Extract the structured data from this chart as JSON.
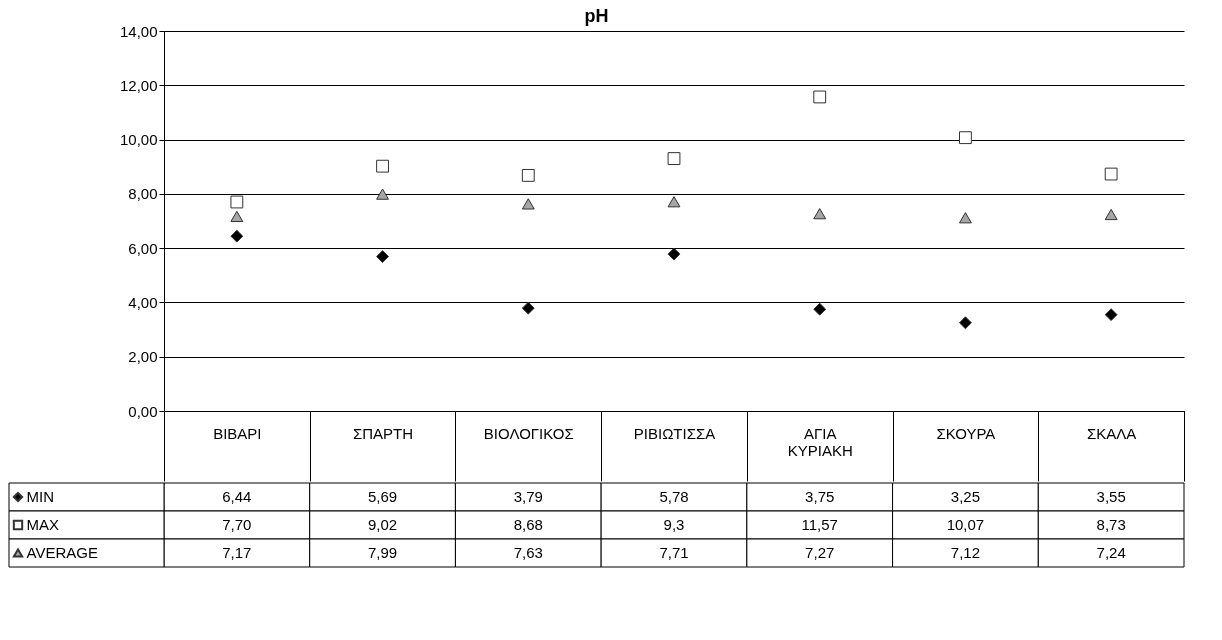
{
  "chart_data": {
    "type": "scatter",
    "title": "pH",
    "categories": [
      "ΒΙΒΑΡΙ",
      "ΣΠΑΡΤΗ",
      "ΒΙΟΛΟΓΙΚΟΣ",
      "ΡΙΒΙΩΤΙΣΣΑ",
      "ΑΓΙΑ ΚΥΡΙΑΚΗ",
      "ΣΚΟΥΡΑ",
      "ΣΚΑΛΑ"
    ],
    "series": [
      {
        "name": "MIN",
        "color": "#000000",
        "marker": "diamond",
        "values": [
          6.44,
          5.69,
          3.79,
          5.78,
          3.75,
          3.25,
          3.55
        ],
        "value_labels": [
          "6,44",
          "5,69",
          "3,79",
          "5,78",
          "3,75",
          "3,25",
          "3,55"
        ]
      },
      {
        "name": "MAX",
        "color": "#ffffff",
        "marker": "square",
        "values": [
          7.7,
          9.02,
          8.68,
          9.3,
          11.57,
          10.07,
          8.73
        ],
        "value_labels": [
          "7,70",
          "9,02",
          "8,68",
          "9,3",
          "11,57",
          "10,07",
          "8,73"
        ]
      },
      {
        "name": "AVERAGE",
        "color": "#a6a6a6",
        "marker": "triangle",
        "values": [
          7.17,
          7.99,
          7.63,
          7.71,
          7.27,
          7.12,
          7.24
        ],
        "value_labels": [
          "7,17",
          "7,99",
          "7,63",
          "7,71",
          "7,27",
          "7,12",
          "7,24"
        ]
      }
    ],
    "ylim": [
      0,
      14
    ],
    "yticks": [
      {
        "value": 0,
        "label": "0,00"
      },
      {
        "value": 2,
        "label": "2,00"
      },
      {
        "value": 4,
        "label": "4,00"
      },
      {
        "value": 6,
        "label": "6,00"
      },
      {
        "value": 8,
        "label": "8,00"
      },
      {
        "value": 10,
        "label": "10,00"
      },
      {
        "value": 12,
        "label": "12,00"
      },
      {
        "value": 14,
        "label": "14,00"
      }
    ],
    "grid": "y",
    "legend": "bottom"
  }
}
